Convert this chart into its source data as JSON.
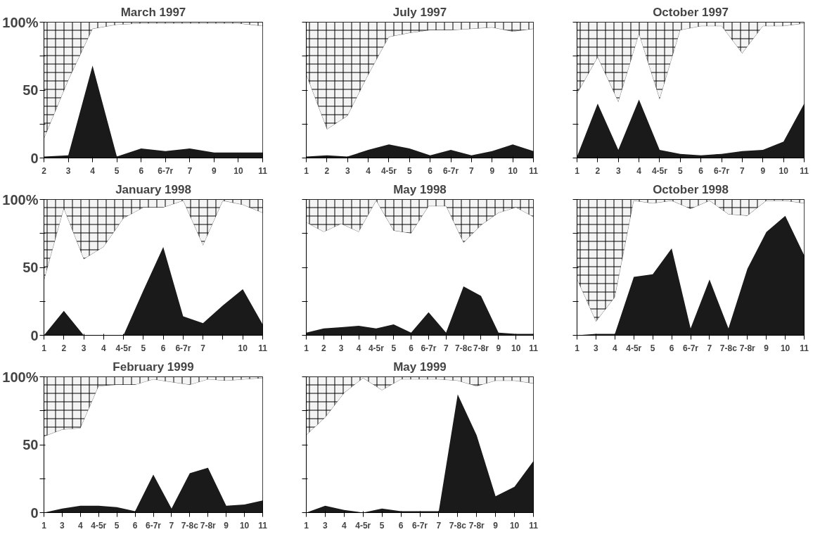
{
  "chart_data": [
    {
      "type": "area",
      "title": "March 1997",
      "stacked": true,
      "grid": false,
      "ylim": [
        0,
        100
      ],
      "yticks": [
        0,
        {
          "value": 25,
          "label": null
        },
        50,
        {
          "value": 75,
          "label": null
        },
        {
          "value": 100,
          "label": "100%"
        }
      ],
      "categories": [
        "2",
        "3",
        "4",
        "5",
        "6",
        "6-7r",
        "7",
        "9",
        "10",
        "11"
      ],
      "series": [
        {
          "color": "#1a1a1a",
          "values": [
            1,
            2,
            68,
            1,
            7,
            5,
            7,
            4,
            4,
            4
          ]
        },
        {
          "color": "#ffffff",
          "values": [
            13,
            55,
            27,
            97,
            92,
            94,
            92,
            95,
            95,
            93
          ]
        },
        {
          "color": "#f4f4f4",
          "values": [
            86,
            43,
            5,
            2,
            1,
            1,
            1,
            1,
            1,
            3
          ]
        }
      ]
    },
    {
      "type": "area",
      "title": "July 1997",
      "stacked": true,
      "grid": false,
      "tick_labels": "x",
      "ylim": [
        0,
        100
      ],
      "yticks": [
        0,
        {
          "value": 25,
          "label": null
        },
        50,
        {
          "value": 75,
          "label": null
        },
        {
          "value": 100,
          "label": null
        }
      ],
      "categories": [
        "1",
        "2",
        "3",
        "4",
        "4-5r",
        "5",
        "6",
        "6-7r",
        "7",
        "9",
        "10",
        "11"
      ],
      "series": [
        {
          "color": "#1a1a1a",
          "values": [
            1,
            2,
            1,
            6,
            10,
            7,
            2,
            6,
            2,
            5,
            10,
            5
          ]
        },
        {
          "color": "#ffffff",
          "values": [
            60,
            19,
            30,
            55,
            79,
            85,
            92,
            88,
            93,
            91,
            83,
            90
          ]
        },
        {
          "color": "#f4f4f4",
          "values": [
            39,
            79,
            69,
            39,
            11,
            8,
            6,
            6,
            5,
            4,
            7,
            5
          ]
        }
      ]
    },
    {
      "type": "area",
      "title": "October 1997",
      "stacked": true,
      "grid": false,
      "tick_labels": "x",
      "ylim": [
        0,
        100
      ],
      "yticks": [
        0,
        {
          "value": 25,
          "label": null
        },
        50,
        {
          "value": 75,
          "label": null
        },
        {
          "value": 100,
          "label": null
        }
      ],
      "categories": [
        "1",
        "2",
        "3",
        "4",
        "4-5r",
        "5",
        "6",
        "6-7r",
        "7",
        "9",
        "10",
        "11"
      ],
      "series": [
        {
          "color": "#1a1a1a",
          "values": [
            1,
            40,
            6,
            43,
            6,
            3,
            2,
            3,
            5,
            6,
            12,
            40
          ]
        },
        {
          "color": "#ffffff",
          "values": [
            46,
            34,
            35,
            48,
            37,
            91,
            95,
            94,
            72,
            91,
            85,
            59
          ]
        },
        {
          "color": "#f4f4f4",
          "values": [
            53,
            26,
            59,
            9,
            57,
            6,
            3,
            3,
            23,
            3,
            3,
            1
          ]
        }
      ]
    },
    {
      "type": "area",
      "title": "January 1998",
      "stacked": true,
      "grid": false,
      "ylim": [
        0,
        100
      ],
      "yticks": [
        0,
        {
          "value": 25,
          "label": null
        },
        50,
        {
          "value": 75,
          "label": null
        },
        {
          "value": 100,
          "label": "100%"
        }
      ],
      "categories": [
        "1",
        "2",
        "3",
        "4",
        "4-5r",
        "5",
        "6",
        "6-7r",
        "7",
        null,
        "10",
        "11"
      ],
      "series": [
        {
          "color": "#1a1a1a",
          "values": [
            0,
            18,
            0,
            0,
            0,
            33,
            65,
            14,
            9,
            22,
            34,
            8
          ]
        },
        {
          "color": "#ffffff",
          "values": [
            40,
            75,
            56,
            65,
            86,
            61,
            29,
            85,
            57,
            77,
            62,
            82
          ]
        },
        {
          "color": "#f4f4f4",
          "values": [
            60,
            7,
            44,
            35,
            14,
            6,
            6,
            1,
            34,
            1,
            4,
            10
          ]
        }
      ]
    },
    {
      "type": "area",
      "title": "May 1998",
      "stacked": true,
      "grid": false,
      "tick_labels": "x",
      "ylim": [
        0,
        100
      ],
      "yticks": [
        0,
        {
          "value": 25,
          "label": null
        },
        50,
        {
          "value": 75,
          "label": null
        },
        {
          "value": 100,
          "label": null
        }
      ],
      "categories": [
        "1",
        "2",
        "3",
        "4",
        "4-5r",
        "5",
        "6",
        "6-7r",
        "7",
        "7-8c",
        "7-8r",
        "9",
        "10",
        "11"
      ],
      "series": [
        {
          "color": "#1a1a1a",
          "values": [
            2,
            5,
            6,
            7,
            5,
            8,
            2,
            17,
            2,
            36,
            29,
            2,
            1,
            1
          ]
        },
        {
          "color": "#ffffff",
          "values": [
            81,
            71,
            76,
            69,
            94,
            69,
            73,
            78,
            93,
            32,
            52,
            88,
            93,
            86
          ]
        },
        {
          "color": "#f4f4f4",
          "values": [
            17,
            24,
            18,
            24,
            1,
            23,
            25,
            5,
            5,
            32,
            19,
            10,
            6,
            13
          ]
        }
      ]
    },
    {
      "type": "area",
      "title": "October 1998",
      "stacked": true,
      "grid": false,
      "tick_labels": "x",
      "ylim": [
        0,
        100
      ],
      "yticks": [
        0,
        {
          "value": 25,
          "label": null
        },
        50,
        {
          "value": 75,
          "label": null
        },
        {
          "value": 100,
          "label": null
        }
      ],
      "categories": [
        "1",
        "3",
        "4",
        "4-5r",
        "5",
        "6",
        "6-7r",
        "7",
        "7-8c",
        "7-8r",
        "9",
        "10",
        "11"
      ],
      "series": [
        {
          "color": "#1a1a1a",
          "values": [
            0,
            1,
            1,
            43,
            45,
            64,
            5,
            41,
            5,
            49,
            76,
            88,
            59
          ]
        },
        {
          "color": "#ffffff",
          "values": [
            41,
            9,
            27,
            56,
            52,
            35,
            88,
            58,
            84,
            39,
            23,
            11,
            38
          ]
        },
        {
          "color": "#f4f4f4",
          "values": [
            59,
            90,
            72,
            1,
            3,
            1,
            7,
            1,
            11,
            12,
            1,
            1,
            3
          ]
        }
      ]
    },
    {
      "type": "area",
      "title": "February 1999",
      "stacked": true,
      "grid": false,
      "ylim": [
        0,
        100
      ],
      "yticks": [
        0,
        {
          "value": 25,
          "label": null
        },
        50,
        {
          "value": 75,
          "label": null
        },
        {
          "value": 100,
          "label": "100%"
        }
      ],
      "categories": [
        "1",
        "3",
        "4",
        "4-5r",
        "5",
        "6",
        "6-7r",
        "7",
        "7-8c",
        "7-8r",
        "9",
        "10",
        "11"
      ],
      "series": [
        {
          "color": "#1a1a1a",
          "values": [
            0,
            3,
            5,
            5,
            4,
            1,
            28,
            3,
            29,
            33,
            5,
            6,
            9
          ]
        },
        {
          "color": "#ffffff",
          "values": [
            56,
            58,
            57,
            88,
            90,
            93,
            70,
            93,
            65,
            65,
            92,
            92,
            90
          ]
        },
        {
          "color": "#f4f4f4",
          "values": [
            44,
            39,
            38,
            7,
            6,
            6,
            2,
            4,
            6,
            2,
            3,
            2,
            1
          ]
        }
      ]
    },
    {
      "type": "area",
      "title": "May 1999",
      "stacked": true,
      "grid": false,
      "tick_labels": "x",
      "ylim": [
        0,
        100
      ],
      "yticks": [
        0,
        {
          "value": 25,
          "label": null
        },
        50,
        {
          "value": 75,
          "label": null
        },
        {
          "value": 100,
          "label": null
        }
      ],
      "categories": [
        "1",
        "3",
        "4",
        "4-5r",
        "5",
        "6",
        "6-7r",
        "7",
        "7-8c",
        "7-8r",
        "9",
        "10",
        "11"
      ],
      "series": [
        {
          "color": "#1a1a1a",
          "values": [
            0,
            5,
            2,
            0,
            3,
            1,
            1,
            1,
            87,
            57,
            12,
            19,
            38
          ]
        },
        {
          "color": "#ffffff",
          "values": [
            57,
            65,
            86,
            99,
            87,
            97,
            97,
            97,
            10,
            36,
            85,
            78,
            57
          ]
        },
        {
          "color": "#f4f4f4",
          "values": [
            43,
            30,
            12,
            1,
            10,
            2,
            2,
            2,
            3,
            7,
            3,
            3,
            5
          ]
        }
      ]
    }
  ]
}
